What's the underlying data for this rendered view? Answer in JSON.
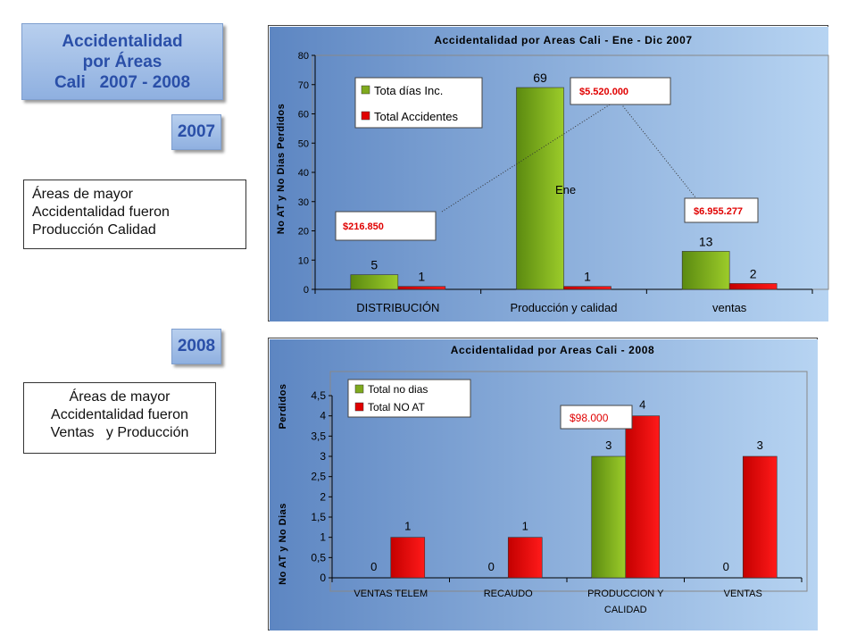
{
  "title_box": {
    "line1": "Accidentalidad",
    "line2": "por Áreas",
    "line3": "Cali   2007 - 2008"
  },
  "year_2007": "2007",
  "year_2008": "2008",
  "note_2007": {
    "line1": "Áreas de mayor",
    "line2": "Accidentalidad fueron",
    "line3": "Producción Calidad"
  },
  "note_2008": {
    "line1": "Áreas de mayor",
    "line2": "Accidentalidad fueron",
    "line3": "Ventas   y Producción"
  },
  "chart_data": [
    {
      "type": "bar",
      "title": "Accidentalidad por Areas Cali - Ene - Dic 2007",
      "ylabel": "No AT y No Dias Perdidos",
      "categories": [
        "DISTRIBUCIÓN",
        "Producción y calidad",
        "ventas"
      ],
      "series": [
        {
          "name": "Tota días Inc.",
          "values": [
            5,
            69,
            13
          ],
          "color": "#7faa1e"
        },
        {
          "name": "Total Accidentes",
          "values": [
            1,
            1,
            2
          ],
          "color": "#e00000"
        }
      ],
      "ylim": [
        0,
        80
      ],
      "yticks": [
        "0",
        "10",
        "20",
        "30",
        "40",
        "50",
        "60",
        "70",
        "80"
      ],
      "grid": false,
      "legend": "top-left",
      "annotations": [
        "$5.520.000",
        "$216.850",
        "$6.955.277",
        "Ene"
      ]
    },
    {
      "type": "bar",
      "title": "Accidentalidad por Areas Cali - 2008",
      "ylabel_top": "Perdidos",
      "ylabel_bottom": "No AT y No Dias",
      "categories": [
        "VENTAS TELEM",
        "RECAUDO",
        "PRODUCCION Y CALIDAD",
        "VENTAS"
      ],
      "category_lines": [
        [
          "VENTAS TELEM"
        ],
        [
          "RECAUDO"
        ],
        [
          "PRODUCCION Y",
          "CALIDAD"
        ],
        [
          "VENTAS"
        ]
      ],
      "series": [
        {
          "name": "Total no dias",
          "values": [
            0,
            0,
            3,
            0
          ],
          "color": "#7faa1e"
        },
        {
          "name": "Total NO AT",
          "values": [
            1,
            1,
            4,
            3
          ],
          "color": "#e00000"
        }
      ],
      "ylim": [
        0,
        4.5
      ],
      "yticks": [
        "0",
        "0,5",
        "1",
        "1,5",
        "2",
        "2,5",
        "3",
        "3,5",
        "4",
        "4,5"
      ],
      "grid": false,
      "legend": "top-left",
      "annotations": [
        "$98.000"
      ]
    }
  ]
}
